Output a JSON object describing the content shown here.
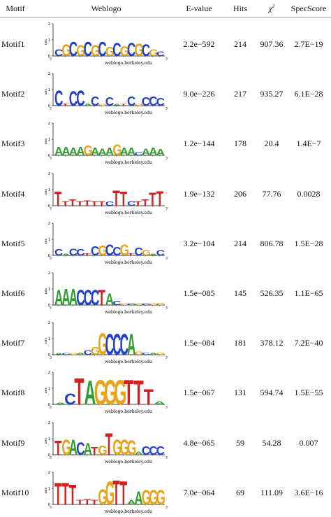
{
  "header": {
    "motif": "Motif",
    "weblogo": "Weblogo",
    "evalue": "E-value",
    "hits": "Hits",
    "chi": "χ",
    "chi_sup": "2",
    "spec": "SpecScore"
  },
  "logo_text": {
    "axis_label": "bits",
    "credit": "weblogo.berkeley.edu",
    "y2": "2",
    "y1": "1",
    "y0": "0",
    "five": "5′",
    "three": "3′"
  },
  "colors": {
    "A": "#2e9e2e",
    "C": "#2440c8",
    "G": "#e8a417",
    "T": "#d42020"
  },
  "rows": [
    {
      "name": "Motif1",
      "evalue": "2.2e−592",
      "hits": "214",
      "chi": "907.36",
      "spec": "2.7E−19",
      "cols": [
        [
          "C",
          0.45
        ],
        [
          "G",
          0.75
        ],
        [
          "C",
          0.9
        ],
        [
          "G",
          0.7
        ],
        [
          "C",
          0.9
        ],
        [
          "G",
          0.7
        ],
        [
          "C",
          0.9
        ],
        [
          "G",
          0.6
        ],
        [
          "C",
          0.85
        ],
        [
          "G",
          0.65
        ],
        [
          "C",
          0.85
        ],
        [
          "G",
          0.8
        ],
        [
          "C",
          0.75
        ],
        [
          "G",
          0.45
        ],
        [
          "C",
          0.3
        ]
      ]
    },
    {
      "name": "Motif2",
      "evalue": "9.0e−226",
      "hits": "217",
      "chi": "935.27",
      "spec": "6.1E−28",
      "cols": [
        [
          "C",
          1.0
        ],
        [
          "T",
          0.15
        ],
        [
          "C",
          0.95
        ],
        [
          "C",
          1.0
        ],
        [
          "A",
          0.15
        ],
        [
          "C",
          0.6
        ],
        [
          "G",
          0.1
        ],
        [
          "C",
          0.55
        ],
        [
          "A",
          0.1
        ],
        [
          "T",
          0.1
        ],
        [
          "C",
          0.6
        ],
        [
          "G",
          0.1
        ],
        [
          "C",
          0.55
        ],
        [
          "C",
          0.6
        ],
        [
          "C",
          0.5
        ]
      ]
    },
    {
      "name": "Motif3",
      "evalue": "1.2e−144",
      "hits": "178",
      "chi": "20.4",
      "spec": "1.4E−7",
      "cols": [
        [
          "A",
          0.55
        ],
        [
          "A",
          0.55
        ],
        [
          "A",
          0.5
        ],
        [
          "A",
          0.55
        ],
        [
          "G",
          0.65
        ],
        [
          "A",
          0.5
        ],
        [
          "A",
          0.45
        ],
        [
          "A",
          0.5
        ],
        [
          "G",
          0.7
        ],
        [
          "A",
          0.5
        ],
        [
          "A",
          0.5
        ],
        [
          "C",
          0.2
        ],
        [
          "A",
          0.45
        ],
        [
          "A",
          0.5
        ],
        [
          "A",
          0.4
        ]
      ]
    },
    {
      "name": "Motif4",
      "evalue": "1.9e−132",
      "hits": "206",
      "chi": "77.76",
      "spec": "0.0028",
      "cols": [
        [
          "T",
          0.9
        ],
        [
          "T",
          0.3
        ],
        [
          "T",
          0.4
        ],
        [
          "T",
          0.3
        ],
        [
          "T",
          0.35
        ],
        [
          "T",
          0.3
        ],
        [
          "T",
          0.3
        ],
        [
          "C",
          0.25
        ],
        [
          "T",
          1.0
        ],
        [
          "T",
          0.9
        ],
        [
          "C",
          0.3
        ],
        [
          "T",
          0.3
        ],
        [
          "T",
          0.4
        ],
        [
          "T",
          0.85
        ],
        [
          "T",
          0.95
        ]
      ]
    },
    {
      "name": "Motif5",
      "evalue": "3.2e−104",
      "hits": "214",
      "chi": "806.78",
      "spec": "1.5E−28",
      "cols": [
        [
          "C",
          0.4
        ],
        [
          "A",
          0.1
        ],
        [
          "C",
          0.45
        ],
        [
          "C",
          0.4
        ],
        [
          "T",
          0.15
        ],
        [
          "C",
          0.6
        ],
        [
          "G",
          0.65
        ],
        [
          "C",
          0.7
        ],
        [
          "C",
          0.55
        ],
        [
          "G",
          0.7
        ],
        [
          "T",
          0.15
        ],
        [
          "C",
          0.5
        ],
        [
          "G",
          0.35
        ],
        [
          "A",
          0.1
        ],
        [
          "C",
          0.35
        ]
      ]
    },
    {
      "name": "Motif6",
      "evalue": "1.5e−085",
      "hits": "145",
      "chi": "526.35",
      "spec": "1.1E−65",
      "cols": [
        [
          "A",
          1.0
        ],
        [
          "A",
          1.05
        ],
        [
          "A",
          1.05
        ],
        [
          "C",
          1.0
        ],
        [
          "C",
          1.0
        ],
        [
          "C",
          1.0
        ],
        [
          "T",
          1.0
        ],
        [
          "A",
          0.75
        ],
        [
          "C",
          0.25
        ],
        [
          "G",
          0.12
        ],
        [
          "C",
          0.1
        ],
        [
          "G",
          0.1
        ],
        [
          "C",
          0.1
        ],
        [
          "G",
          0.12
        ],
        [
          "G",
          0.15
        ]
      ]
    },
    {
      "name": "Motif7",
      "evalue": "1.5e−084",
      "hits": "181",
      "chi": "378.12",
      "spec": "7.2E−40",
      "cols": [
        [
          "A",
          0.1
        ],
        [
          "C",
          0.1
        ],
        [
          "G",
          0.1
        ],
        [
          "A",
          0.15
        ],
        [
          "C",
          0.3
        ],
        [
          "G",
          0.5
        ],
        [
          "G",
          1.4
        ],
        [
          "C",
          1.35
        ],
        [
          "C",
          1.35
        ],
        [
          "C",
          1.35
        ],
        [
          "A",
          1.35
        ],
        [
          "G",
          0.2
        ],
        [
          "C",
          0.15
        ],
        [
          "A",
          0.15
        ],
        [
          "G",
          0.15
        ]
      ]
    },
    {
      "name": "Motif8",
      "evalue": "1.5e−067",
      "hits": "131",
      "chi": "594.74",
      "spec": "1.5E−55",
      "cols": [
        [
          "A",
          0.1
        ],
        [
          "C",
          0.7
        ],
        [
          "T",
          1.7
        ],
        [
          "A",
          1.55
        ],
        [
          "G",
          1.6
        ],
        [
          "G",
          1.6
        ],
        [
          "G",
          1.6
        ],
        [
          "T",
          1.6
        ],
        [
          "T",
          1.55
        ],
        [
          "T",
          1.0
        ],
        [
          "A",
          0.2
        ]
      ]
    },
    {
      "name": "Motif9",
      "evalue": "4.8e−065",
      "hits": "59",
      "chi": "54.28",
      "spec": "0.007",
      "cols": [
        [
          "T",
          0.9
        ],
        [
          "G",
          1.0
        ],
        [
          "A",
          1.0
        ],
        [
          "C",
          0.8
        ],
        [
          "A",
          0.75
        ],
        [
          "T",
          0.5
        ],
        [
          "G",
          0.6
        ],
        [
          "T",
          1.4
        ],
        [
          "G",
          1.0
        ],
        [
          "G",
          1.0
        ],
        [
          "G",
          0.95
        ],
        [
          "A",
          0.2
        ],
        [
          "C",
          0.55
        ],
        [
          "C",
          0.55
        ],
        [
          "C",
          0.55
        ]
      ]
    },
    {
      "name": "Motif10",
      "evalue": "7.0e−064",
      "hits": "69",
      "chi": "111.09",
      "spec": "3.6E−16",
      "cols": [
        [
          "T",
          1.4
        ],
        [
          "T",
          1.4
        ],
        [
          "T",
          1.3
        ],
        [
          "T",
          0.3
        ],
        [
          "T",
          0.35
        ],
        [
          "T",
          0.3
        ],
        [
          "G",
          1.0
        ],
        [
          "G",
          1.5
        ],
        [
          "T",
          1.55
        ],
        [
          "T",
          1.5
        ],
        [
          "A",
          0.3
        ],
        [
          "A",
          0.85
        ],
        [
          "G",
          0.95
        ],
        [
          "G",
          0.95
        ],
        [
          "G",
          0.95
        ]
      ]
    }
  ]
}
